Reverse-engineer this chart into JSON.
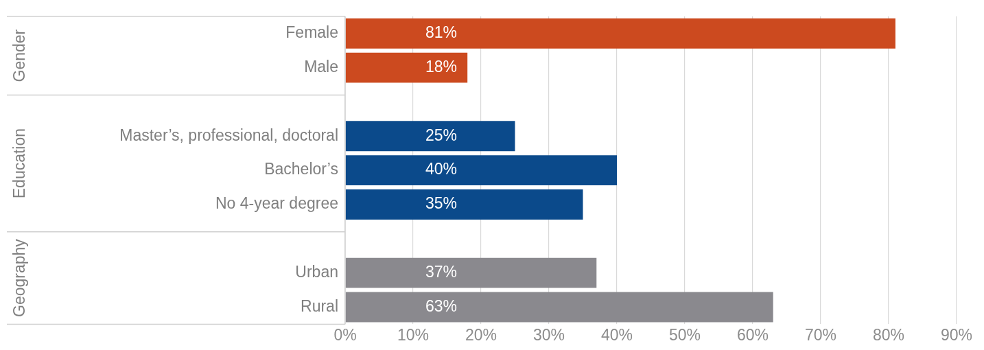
{
  "chart_data": {
    "type": "bar",
    "orientation": "horizontal",
    "categories": [
      "Female",
      "Male",
      null,
      "Master’s, professional, doctoral",
      "Bachelor’s",
      "No 4-year degree",
      null,
      "Urban",
      "Rural"
    ],
    "values": [
      81,
      18,
      null,
      25,
      40,
      35,
      null,
      37,
      63
    ],
    "colors": [
      "#cc4a1f",
      "#cc4a1f",
      null,
      "#0b4a8b",
      "#0b4a8b",
      "#0b4a8b",
      null,
      "#8a898e",
      "#8a898e"
    ],
    "value_labels": [
      "81%",
      "18%",
      null,
      "25%",
      "40%",
      "35%",
      null,
      "37%",
      "63%"
    ],
    "annotations": [
      "Gender",
      "Education",
      "Geography"
    ],
    "xlim": [
      0,
      90
    ],
    "xticks": [
      {
        "value": 0,
        "label": "0%"
      },
      {
        "value": 10,
        "label": "10%"
      },
      {
        "value": 20,
        "label": "20%"
      },
      {
        "value": 30,
        "label": "30%"
      },
      {
        "value": 40,
        "label": "40%"
      },
      {
        "value": 50,
        "label": "50%"
      },
      {
        "value": 60,
        "label": "60%"
      },
      {
        "value": 70,
        "label": "70%"
      },
      {
        "value": 80,
        "label": "80%"
      },
      {
        "value": 90,
        "label": "90%"
      }
    ],
    "grid": "x",
    "legend": false
  }
}
